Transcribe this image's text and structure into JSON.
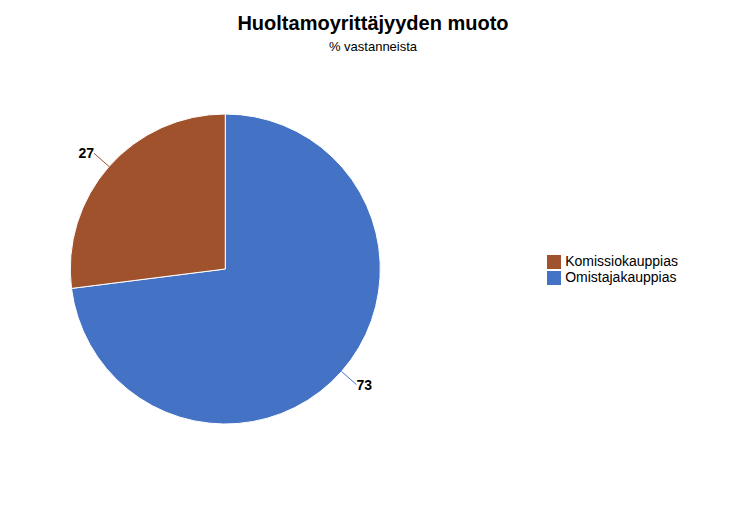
{
  "chart_data": {
    "type": "pie",
    "title": "Huoltamoyrittäjyyden muoto",
    "subtitle": "% vastanneista",
    "categories": [
      "Omistajakauppias",
      "Komissiokauppias"
    ],
    "values": [
      73,
      27
    ],
    "colors": [
      "#4472C4",
      "#A0522D"
    ],
    "data_labels": true,
    "legend": "right"
  }
}
